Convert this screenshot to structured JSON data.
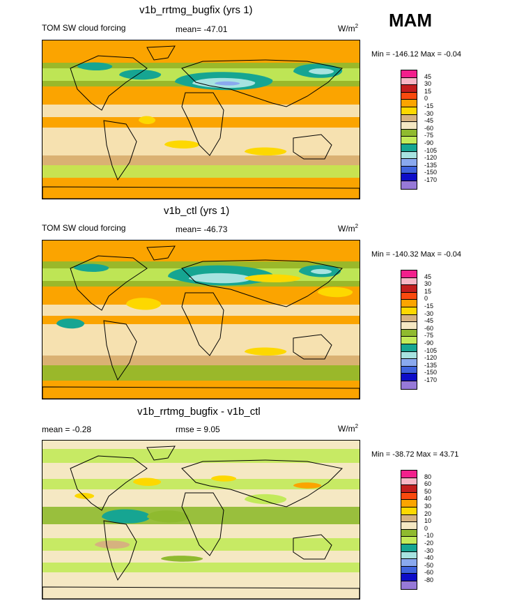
{
  "season": "MAM",
  "panels": [
    {
      "title": "v1b_rrtmg_bugfix (yrs 1)",
      "left_label": "TOM SW cloud forcing",
      "center_label": "mean= -47.01",
      "units": "W/m",
      "units_sup": "2",
      "minmax": "Min = -146.12 Max =  -0.04",
      "levels": [
        "45",
        "30",
        "15",
        "0",
        "-15",
        "-30",
        "-45",
        "-60",
        "-75",
        "-90",
        "-105",
        "-120",
        "-135",
        "-150",
        "-170"
      ],
      "colors": [
        "#f21f8c",
        "#f7b6c5",
        "#c21d1d",
        "#fa4a0e",
        "#fba400",
        "#fdd800",
        "#d6b27f",
        "#f5e8c3",
        "#8fba2f",
        "#c2ea5a",
        "#16a592",
        "#a7e3e0",
        "#8aa9ee",
        "#3f63dd",
        "#0d0dc8",
        "#9779d8"
      ],
      "bg": "#fba400"
    },
    {
      "title": "v1b_ctl (yrs 1)",
      "left_label": "TOM SW cloud forcing",
      "center_label": "mean= -46.73",
      "units": "W/m",
      "units_sup": "2",
      "minmax": "Min = -140.32 Max =  -0.04",
      "levels": [
        "45",
        "30",
        "15",
        "0",
        "-15",
        "-30",
        "-45",
        "-60",
        "-75",
        "-90",
        "-105",
        "-120",
        "-135",
        "-150",
        "-170"
      ],
      "colors": [
        "#f21f8c",
        "#f7b6c5",
        "#c21d1d",
        "#fa4a0e",
        "#fba400",
        "#fdd800",
        "#d6b27f",
        "#f5e8c3",
        "#8fba2f",
        "#c2ea5a",
        "#16a592",
        "#a7e3e0",
        "#8aa9ee",
        "#3f63dd",
        "#0d0dc8",
        "#9779d8"
      ],
      "bg": "#fba400"
    },
    {
      "title": "v1b_rrtmg_bugfix - v1b_ctl",
      "left_label": "mean =  -0.28",
      "center_label": "rmse =    9.05",
      "units": "W/m",
      "units_sup": "2",
      "minmax": "Min = -38.72 Max =  43.71",
      "levels": [
        "80",
        "60",
        "50",
        "40",
        "30",
        "20",
        "10",
        "0",
        "-10",
        "-20",
        "-30",
        "-40",
        "-50",
        "-60",
        "-80"
      ],
      "colors": [
        "#f21f8c",
        "#f7b6c5",
        "#c21d1d",
        "#fa4a0e",
        "#fba400",
        "#fdd800",
        "#d6b27f",
        "#f5e8c3",
        "#8fba2f",
        "#c2ea5a",
        "#16a592",
        "#a7e3e0",
        "#8aa9ee",
        "#3f63dd",
        "#0d0dc8",
        "#9779d8"
      ],
      "bg": "#f5e8c3"
    }
  ],
  "chart_data": {
    "type": "heatmap",
    "title": "MAM",
    "maps": [
      {
        "name": "v1b_rrtmg_bugfix (yrs 1)",
        "variable": "TOM SW cloud forcing",
        "mean": -47.01,
        "min": -146.12,
        "max": -0.04,
        "units": "W/m2"
      },
      {
        "name": "v1b_ctl (yrs 1)",
        "variable": "TOM SW cloud forcing",
        "mean": -46.73,
        "min": -140.32,
        "max": -0.04,
        "units": "W/m2"
      },
      {
        "name": "v1b_rrtmg_bugfix - v1b_ctl",
        "mean": -0.28,
        "rmse": 9.05,
        "min": -38.72,
        "max": 43.71,
        "units": "W/m2"
      }
    ]
  }
}
